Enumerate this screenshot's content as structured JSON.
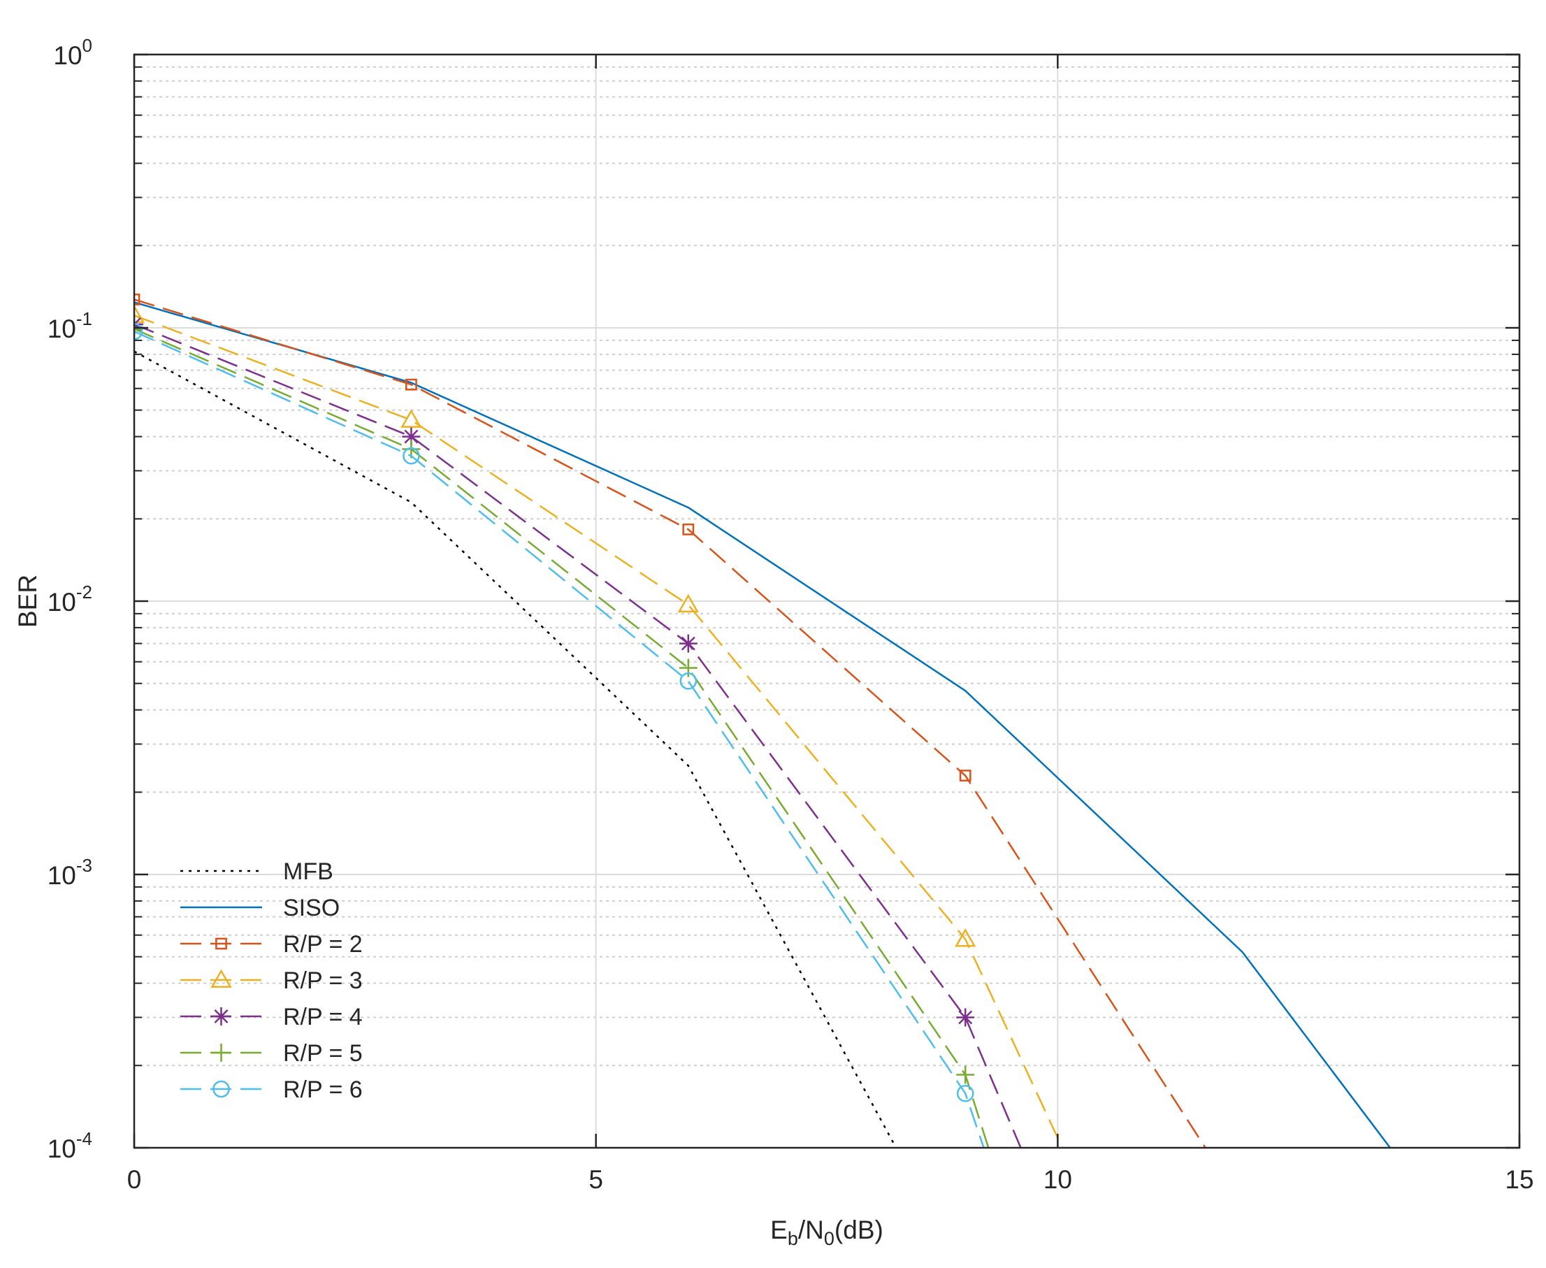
{
  "chart_data": {
    "type": "line",
    "title": "",
    "xlabel": {
      "base": "E",
      "sub1": "b",
      "mid": "/N",
      "sub2": "0",
      "tail": "(dB)"
    },
    "ylabel": "BER",
    "xlim": [
      0,
      15
    ],
    "ylim": [
      0.0001,
      1
    ],
    "yscale": "log",
    "grid": true,
    "x_ticks": [
      {
        "value": 0,
        "label": "0"
      },
      {
        "value": 5,
        "label": "5"
      },
      {
        "value": 10,
        "label": "10"
      },
      {
        "value": 15,
        "label": "15"
      }
    ],
    "y_ticks": [
      {
        "value": 1,
        "base": "10",
        "exp": "0"
      },
      {
        "value": 0.1,
        "base": "10",
        "exp": "-1"
      },
      {
        "value": 0.01,
        "base": "10",
        "exp": "-2"
      },
      {
        "value": 0.001,
        "base": "10",
        "exp": "-3"
      },
      {
        "value": 0.0001,
        "base": "10",
        "exp": "-4"
      }
    ],
    "legend_position": "bottom-left",
    "series": [
      {
        "id": "mfb",
        "name": "MFB",
        "color": "#000000",
        "dash": "dotted",
        "marker": "none",
        "x": [
          0,
          3,
          6,
          8.25
        ],
        "y": [
          0.082,
          0.023,
          0.0025,
          0.0001
        ]
      },
      {
        "id": "siso",
        "name": "SISO",
        "color": "#0072BD",
        "dash": "solid",
        "marker": "none",
        "x": [
          0,
          3,
          6,
          9,
          12,
          13.6
        ],
        "y": [
          0.124,
          0.063,
          0.022,
          0.0047,
          0.00052,
          0.0001
        ]
      },
      {
        "id": "rp2",
        "name": "R/P = 2",
        "color": "#D95319",
        "dash": "dashed",
        "marker": "square",
        "x": [
          0,
          3,
          6,
          9,
          11.6
        ],
        "y": [
          0.127,
          0.062,
          0.0183,
          0.0023,
          0.0001
        ]
      },
      {
        "id": "rp3",
        "name": "R/P = 3",
        "color": "#EDB120",
        "dash": "dashed",
        "marker": "triangle",
        "x": [
          0,
          3,
          6,
          9,
          10.05
        ],
        "y": [
          0.111,
          0.046,
          0.0097,
          0.00058,
          0.0001
        ]
      },
      {
        "id": "rp4",
        "name": "R/P = 4",
        "color": "#7E2F8E",
        "dash": "dashed",
        "marker": "asterisk",
        "x": [
          0,
          3,
          6,
          9,
          9.6
        ],
        "y": [
          0.103,
          0.04,
          0.007,
          0.0003,
          0.0001
        ]
      },
      {
        "id": "rp5",
        "name": "R/P = 5",
        "color": "#77AC30",
        "dash": "dashed",
        "marker": "plus",
        "x": [
          0,
          3,
          6,
          9,
          9.25
        ],
        "y": [
          0.099,
          0.036,
          0.0057,
          0.000185,
          0.0001
        ]
      },
      {
        "id": "rp6",
        "name": "R/P = 6",
        "color": "#4DBEEE",
        "dash": "dashed",
        "marker": "circle",
        "x": [
          0,
          3,
          6,
          9,
          9.2
        ],
        "y": [
          0.097,
          0.034,
          0.0051,
          0.000158,
          0.0001
        ]
      }
    ]
  }
}
